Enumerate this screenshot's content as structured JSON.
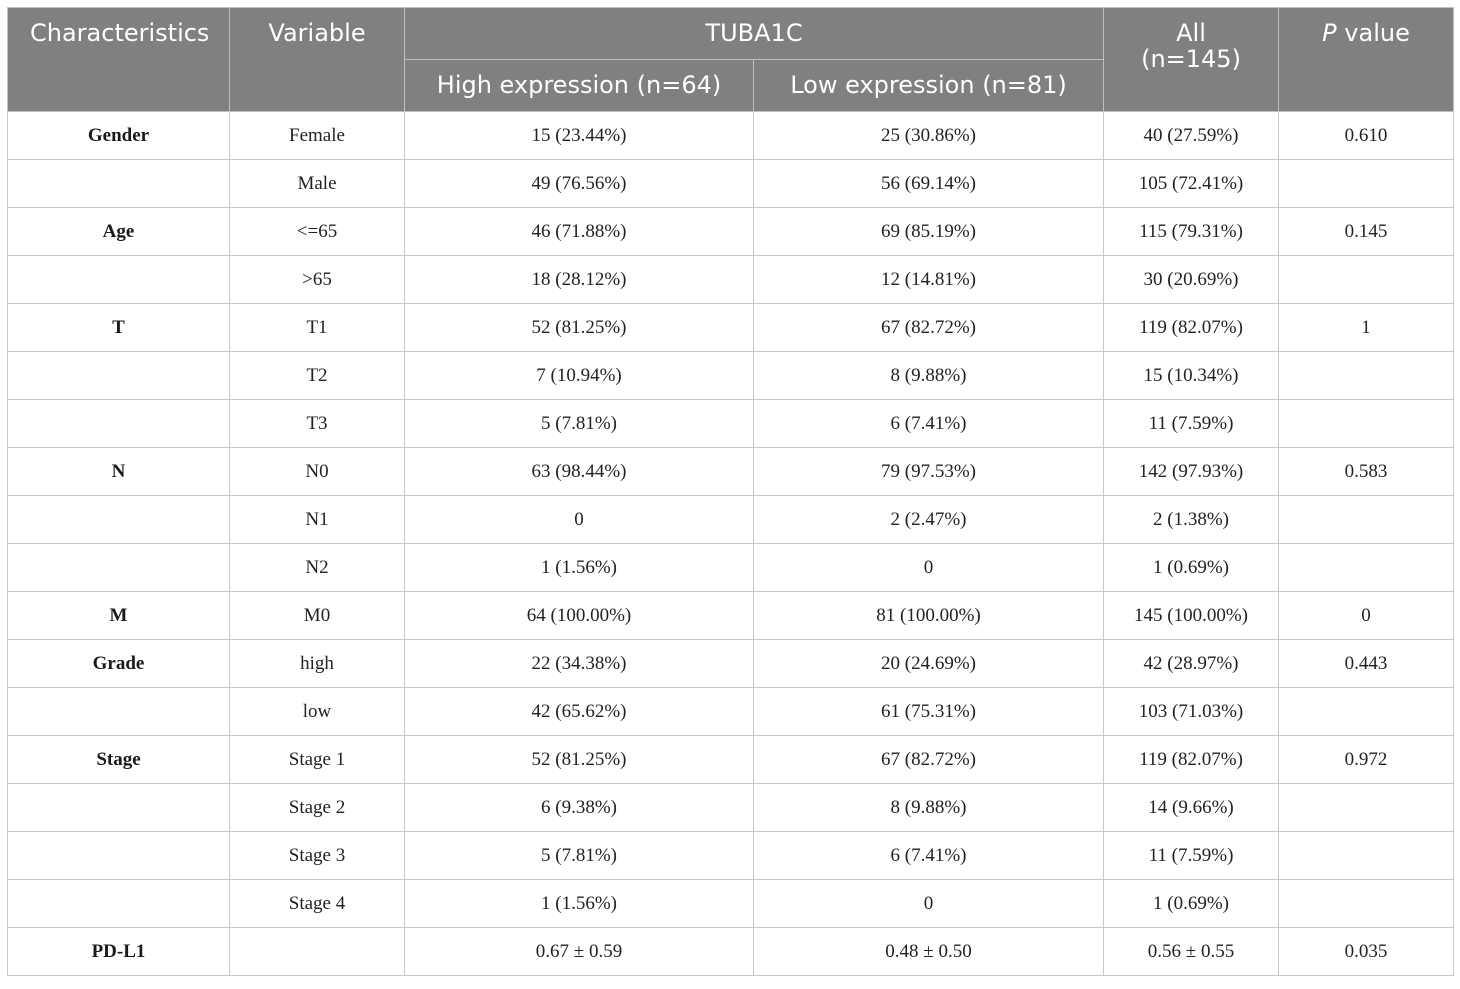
{
  "header": {
    "characteristics": "Characteristics",
    "variable": "Variable",
    "group": "TUBA1C",
    "high": "High expression (n=64)",
    "low": "Low expression (n=81)",
    "all_line1": "All",
    "all_line2": "(n=145)",
    "pvalue_italic": "P",
    "pvalue_rest": " value"
  },
  "rows": [
    {
      "char": "Gender",
      "var": "Female",
      "high": "15 (23.44%)",
      "low": "25 (30.86%)",
      "all": "40 (27.59%)",
      "p": "0.610"
    },
    {
      "char": "",
      "var": "Male",
      "high": "49 (76.56%)",
      "low": "56 (69.14%)",
      "all": "105 (72.41%)",
      "p": ""
    },
    {
      "char": "Age",
      "var": "<=65",
      "high": "46 (71.88%)",
      "low": "69 (85.19%)",
      "all": "115 (79.31%)",
      "p": "0.145"
    },
    {
      "char": "",
      "var": ">65",
      "high": "18 (28.12%)",
      "low": "12 (14.81%)",
      "all": "30 (20.69%)",
      "p": ""
    },
    {
      "char": "T",
      "var": "T1",
      "high": "52 (81.25%)",
      "low": "67 (82.72%)",
      "all": "119 (82.07%)",
      "p": "1"
    },
    {
      "char": "",
      "var": "T2",
      "high": "7 (10.94%)",
      "low": "8 (9.88%)",
      "all": "15 (10.34%)",
      "p": ""
    },
    {
      "char": "",
      "var": "T3",
      "high": "5 (7.81%)",
      "low": "6 (7.41%)",
      "all": "11 (7.59%)",
      "p": ""
    },
    {
      "char": "N",
      "var": "N0",
      "high": "63 (98.44%)",
      "low": "79 (97.53%)",
      "all": "142 (97.93%)",
      "p": "0.583"
    },
    {
      "char": "",
      "var": "N1",
      "high": "0",
      "low": "2 (2.47%)",
      "all": "2 (1.38%)",
      "p": ""
    },
    {
      "char": "",
      "var": "N2",
      "high": "1 (1.56%)",
      "low": "0",
      "all": "1 (0.69%)",
      "p": ""
    },
    {
      "char": "M",
      "var": "M0",
      "high": "64 (100.00%)",
      "low": "81 (100.00%)",
      "all": "145 (100.00%)",
      "p": "0"
    },
    {
      "char": "Grade",
      "var": "high",
      "high": "22 (34.38%)",
      "low": "20 (24.69%)",
      "all": "42 (28.97%)",
      "p": "0.443"
    },
    {
      "char": "",
      "var": "low",
      "high": "42 (65.62%)",
      "low": "61 (75.31%)",
      "all": "103 (71.03%)",
      "p": ""
    },
    {
      "char": "Stage",
      "var": "Stage 1",
      "high": "52 (81.25%)",
      "low": "67 (82.72%)",
      "all": "119 (82.07%)",
      "p": "0.972"
    },
    {
      "char": "",
      "var": "Stage 2",
      "high": "6 (9.38%)",
      "low": "8 (9.88%)",
      "all": "14 (9.66%)",
      "p": ""
    },
    {
      "char": "",
      "var": "Stage 3",
      "high": "5 (7.81%)",
      "low": "6 (7.41%)",
      "all": "11 (7.59%)",
      "p": ""
    },
    {
      "char": "",
      "var": "Stage 4",
      "high": "1 (1.56%)",
      "low": "0",
      "all": "1 (0.69%)",
      "p": ""
    },
    {
      "char": "PD-L1",
      "var": "",
      "high": "0.67 ± 0.59",
      "low": "0.48 ± 0.50",
      "all": "0.56 ± 0.55",
      "p": "0.035"
    }
  ]
}
